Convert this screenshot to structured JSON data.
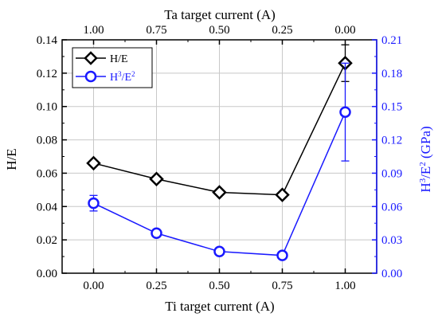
{
  "chart_data": {
    "type": "line",
    "x_bottom": {
      "label": "Ti target current (A)",
      "range": [
        -0.125,
        1.125
      ],
      "ticks": [
        0.0,
        0.25,
        0.5,
        0.75,
        1.0
      ],
      "tick_labels": [
        "0.00",
        "0.25",
        "0.50",
        "0.75",
        "1.00"
      ]
    },
    "x_top": {
      "label": "Ta target current (A)",
      "tick_labels": [
        "1.00",
        "0.75",
        "0.50",
        "0.25",
        "0.00"
      ]
    },
    "y_left": {
      "label": "H/E",
      "range": [
        0,
        0.14
      ],
      "ticks": [
        0,
        0.02,
        0.04,
        0.06,
        0.08,
        0.1,
        0.12,
        0.14
      ],
      "tick_labels": [
        "0.00",
        "0.02",
        "0.04",
        "0.06",
        "0.08",
        "0.10",
        "0.12",
        "0.14"
      ]
    },
    "y_right": {
      "label_main": "H",
      "label_sup1": "3",
      "label_mid": "/E",
      "label_sup2": "2",
      "label_unit": " (GPa)",
      "range": [
        0,
        0.21
      ],
      "ticks": [
        0,
        0.03,
        0.06,
        0.09,
        0.12,
        0.15,
        0.18,
        0.21
      ],
      "tick_labels": [
        "0.00",
        "0.03",
        "0.06",
        "0.09",
        "0.12",
        "0.15",
        "0.18",
        "0.21"
      ],
      "color": "#1a1aff"
    },
    "grid": true,
    "legend_position": "top-left",
    "series": [
      {
        "name": "H/E",
        "axis": "left",
        "marker": "diamond",
        "color": "#000000",
        "x": [
          0.0,
          0.25,
          0.5,
          0.75,
          1.0
        ],
        "y": [
          0.066,
          0.0565,
          0.0485,
          0.047,
          0.126
        ],
        "err": [
          0.001,
          0.0015,
          0.0015,
          0.0015,
          0.011
        ]
      },
      {
        "name_main": "H",
        "name_sup1": "3",
        "name_mid": "/E",
        "name_sup2": "2",
        "axis": "right",
        "marker": "circle",
        "color": "#1a1aff",
        "x": [
          0.0,
          0.25,
          0.5,
          0.75,
          1.0
        ],
        "y": [
          0.063,
          0.036,
          0.0195,
          0.016,
          0.145
        ],
        "err": [
          0.007,
          0.001,
          0.001,
          0.001,
          0.044
        ]
      }
    ]
  }
}
